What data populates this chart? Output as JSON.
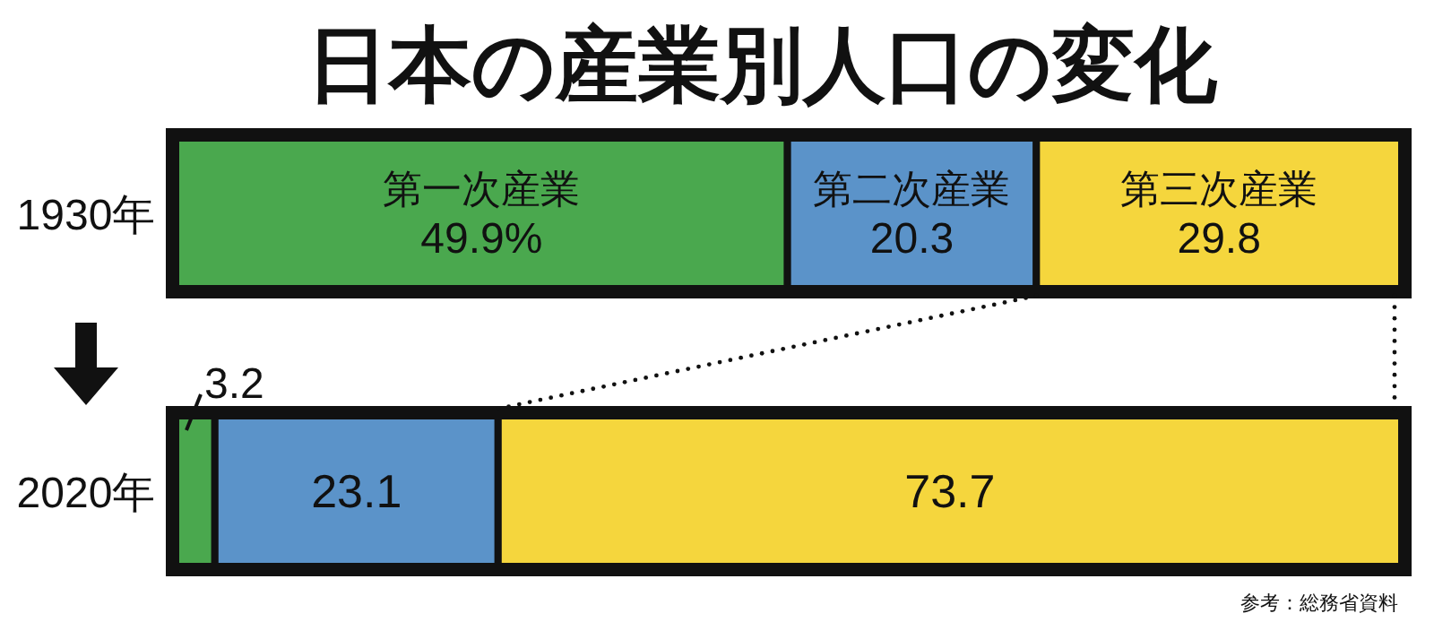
{
  "chart_data": {
    "type": "bar",
    "orientation": "horizontal",
    "stacked": true,
    "title": "日本の産業別人口の変化",
    "categories": [
      "1930年",
      "2020年"
    ],
    "xlim": [
      0,
      100
    ],
    "series": [
      {
        "name": "第一次産業",
        "color": "#4aa84e",
        "values": [
          49.9,
          3.2
        ],
        "value_labels": [
          "49.9%",
          "3.2"
        ]
      },
      {
        "name": "第二次産業",
        "color": "#5b93c9",
        "values": [
          20.3,
          23.1
        ],
        "value_labels": [
          "20.3",
          "23.1"
        ]
      },
      {
        "name": "第三次産業",
        "color": "#f5d63d",
        "values": [
          29.8,
          73.7
        ],
        "value_labels": [
          "29.8",
          "73.7"
        ]
      }
    ],
    "annotations": [
      "参考：総務省資料"
    ]
  }
}
